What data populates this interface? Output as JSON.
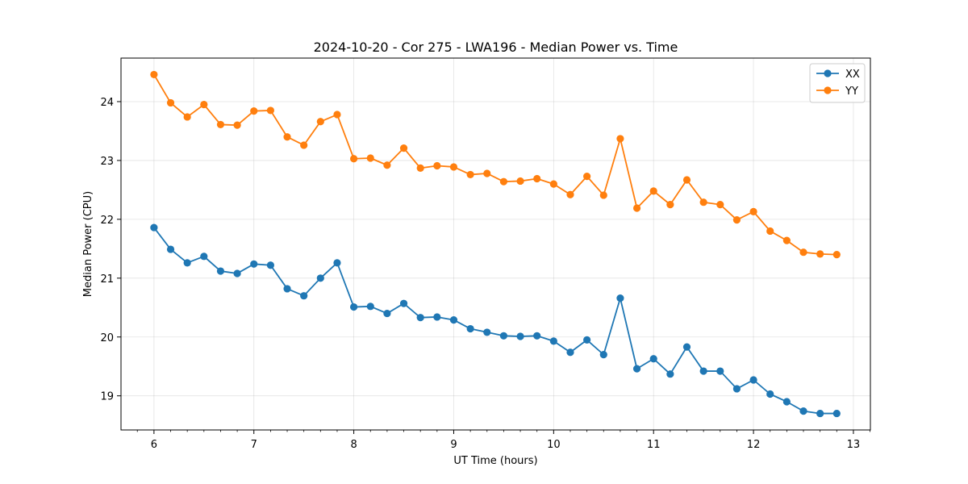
{
  "chart_data": {
    "type": "line",
    "title": "2024-10-20 - Cor 275 - LWA196 - Median Power vs. Time",
    "xlabel": "UT Time (hours)",
    "ylabel": "Median Power (CPU)",
    "xlim": [
      5.67,
      13.17
    ],
    "ylim": [
      18.42,
      24.74
    ],
    "xticks": [
      6,
      7,
      8,
      9,
      10,
      11,
      12,
      13
    ],
    "yticks": [
      19,
      20,
      21,
      22,
      23,
      24
    ],
    "grid": true,
    "legend_position": "top-right",
    "x": [
      6.0,
      6.1667,
      6.3333,
      6.5,
      6.6667,
      6.8333,
      7.0,
      7.1667,
      7.3333,
      7.5,
      7.6667,
      7.8333,
      8.0,
      8.1667,
      8.3333,
      8.5,
      8.6667,
      8.8333,
      9.0,
      9.1667,
      9.3333,
      9.5,
      9.6667,
      9.8333,
      10.0,
      10.1667,
      10.3333,
      10.5,
      10.6667,
      10.8333,
      11.0,
      11.1667,
      11.3333,
      11.5,
      11.6667,
      11.8333,
      12.0,
      12.1667,
      12.3333,
      12.5,
      12.6667,
      12.8333
    ],
    "series": [
      {
        "name": "XX",
        "color": "#1f77b4",
        "values": [
          21.86,
          21.49,
          21.26,
          21.37,
          21.12,
          21.08,
          21.24,
          21.22,
          20.82,
          20.7,
          21.0,
          21.26,
          20.51,
          20.52,
          20.4,
          20.57,
          20.33,
          20.34,
          20.29,
          20.14,
          20.08,
          20.02,
          20.01,
          20.02,
          19.93,
          19.74,
          19.95,
          19.7,
          20.66,
          19.46,
          19.63,
          19.37,
          19.83,
          19.42,
          19.42,
          19.12,
          19.27,
          19.03,
          18.9,
          18.74,
          18.7,
          18.7
        ]
      },
      {
        "name": "YY",
        "color": "#ff7f0e",
        "values": [
          24.46,
          23.98,
          23.74,
          23.95,
          23.61,
          23.6,
          23.84,
          23.85,
          23.4,
          23.26,
          23.66,
          23.78,
          23.03,
          23.04,
          22.92,
          23.21,
          22.87,
          22.91,
          22.89,
          22.76,
          22.78,
          22.64,
          22.65,
          22.69,
          22.6,
          22.42,
          22.73,
          22.41,
          23.37,
          22.19,
          22.48,
          22.25,
          22.67,
          22.29,
          22.25,
          21.99,
          22.13,
          21.8,
          21.64,
          21.44,
          21.41,
          21.4
        ]
      }
    ]
  }
}
